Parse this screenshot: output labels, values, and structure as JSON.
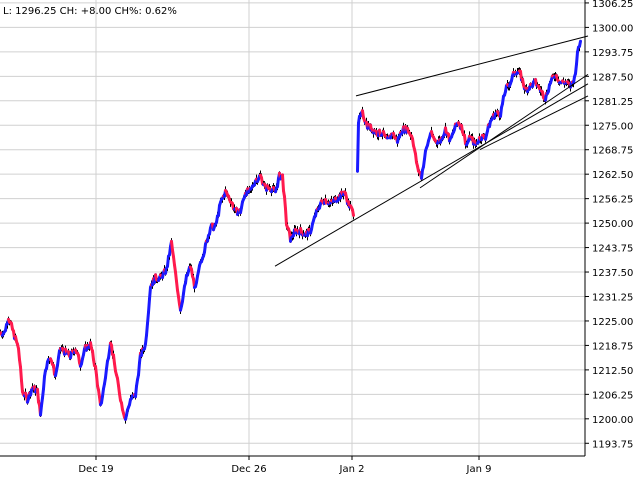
{
  "header": {
    "text": "L: 1296.25 CH: +8.00 CH%: 0.62%"
  },
  "colors": {
    "up": "#1a1aff",
    "down": "#ff1a4d",
    "wick": "#000000",
    "grid": "#d0d0d0",
    "trendline": "#000000"
  },
  "chart_data": {
    "type": "line",
    "title": "",
    "xlabel": "",
    "ylabel": "",
    "ylim": [
      1190.5,
      1307
    ],
    "grid": true,
    "y_axis_position": "right",
    "yticks": [
      "1306.25",
      "1300.00",
      "1293.75",
      "1287.50",
      "1281.25",
      "1275.00",
      "1268.75",
      "1262.50",
      "1256.25",
      "1250.00",
      "1243.75",
      "1237.50",
      "1231.25",
      "1225.00",
      "1218.75",
      "1212.50",
      "1206.25",
      "1200.00",
      "1193.75"
    ],
    "xticks": [
      "Dec 19",
      "Dec 26",
      "Jan 2",
      "Jan 9"
    ],
    "series": [
      {
        "style": "colored-bar-line",
        "anchors": [
          [
            0,
            1222
          ],
          [
            4,
            1222
          ],
          [
            8,
            1226
          ],
          [
            13,
            1222
          ],
          [
            18,
            1218
          ],
          [
            22,
            1207
          ],
          [
            27,
            1205
          ],
          [
            32,
            1208
          ],
          [
            37,
            1207
          ],
          [
            40,
            1201
          ],
          [
            45,
            1213
          ],
          [
            50,
            1216
          ],
          [
            55,
            1211
          ],
          [
            60,
            1218
          ],
          [
            65,
            1217
          ],
          [
            70,
            1216
          ],
          [
            75,
            1218
          ],
          [
            80,
            1214
          ],
          [
            85,
            1218
          ],
          [
            90,
            1219
          ],
          [
            95,
            1213
          ],
          [
            100,
            1203
          ],
          [
            104,
            1209
          ],
          [
            110,
            1220
          ],
          [
            116,
            1211
          ],
          [
            121,
            1204
          ],
          [
            125,
            1200
          ],
          [
            130,
            1205
          ],
          [
            135,
            1206
          ],
          [
            140,
            1216
          ],
          [
            145,
            1219
          ],
          [
            150,
            1234
          ],
          [
            155,
            1236
          ],
          [
            160,
            1236
          ],
          [
            166,
            1238
          ],
          [
            171,
            1245
          ],
          [
            175,
            1237
          ],
          [
            180,
            1228
          ],
          [
            186,
            1236
          ],
          [
            190,
            1239
          ],
          [
            195,
            1233
          ],
          [
            200,
            1240
          ],
          [
            205,
            1244
          ],
          [
            210,
            1249
          ],
          [
            215,
            1249
          ],
          [
            220,
            1255
          ],
          [
            225,
            1258
          ],
          [
            230,
            1256
          ],
          [
            235,
            1253
          ],
          [
            240,
            1253
          ],
          [
            245,
            1258
          ],
          [
            250,
            1258
          ],
          [
            255,
            1261
          ],
          [
            260,
            1262
          ],
          [
            265,
            1259
          ],
          [
            270,
            1259
          ],
          [
            275,
            1258
          ],
          [
            279,
            1262
          ],
          [
            282,
            1262
          ],
          [
            286,
            1250
          ],
          [
            290,
            1246
          ],
          [
            295,
            1248
          ],
          [
            300,
            1248
          ],
          [
            305,
            1247
          ],
          [
            310,
            1248
          ],
          [
            315,
            1252
          ],
          [
            320,
            1255
          ],
          [
            325,
            1256
          ],
          [
            330,
            1255
          ],
          [
            335,
            1256
          ],
          [
            340,
            1257
          ],
          [
            344,
            1258
          ],
          [
            348,
            1255
          ],
          [
            352,
            1253
          ],
          [
            356,
            1252
          ],
          [
            358,
            1276
          ],
          [
            362,
            1278
          ],
          [
            367,
            1275
          ],
          [
            372,
            1274
          ],
          [
            377,
            1273
          ],
          [
            382,
            1273
          ],
          [
            387,
            1271
          ],
          [
            392,
            1273
          ],
          [
            397,
            1271
          ],
          [
            402,
            1274
          ],
          [
            407,
            1274
          ],
          [
            412,
            1272
          ],
          [
            417,
            1264
          ],
          [
            421,
            1262
          ],
          [
            425,
            1268
          ],
          [
            430,
            1273
          ],
          [
            435,
            1271
          ],
          [
            440,
            1271
          ],
          [
            445,
            1274
          ],
          [
            450,
            1271
          ],
          [
            454,
            1274
          ],
          [
            458,
            1276
          ],
          [
            462,
            1274
          ],
          [
            466,
            1270
          ],
          [
            470,
            1272
          ],
          [
            475,
            1270
          ],
          [
            480,
            1272
          ],
          [
            485,
            1272
          ],
          [
            490,
            1276
          ],
          [
            495,
            1278
          ],
          [
            500,
            1278
          ],
          [
            505,
            1284
          ],
          [
            510,
            1286
          ],
          [
            515,
            1289
          ],
          [
            520,
            1288
          ],
          [
            525,
            1284
          ],
          [
            530,
            1285
          ],
          [
            535,
            1286
          ],
          [
            540,
            1284
          ],
          [
            545,
            1282
          ],
          [
            550,
            1286
          ],
          [
            555,
            1288
          ],
          [
            560,
            1286
          ],
          [
            565,
            1286
          ],
          [
            570,
            1285
          ],
          [
            574,
            1287
          ],
          [
            578,
            1295
          ],
          [
            580,
            1296.25
          ]
        ]
      }
    ],
    "trendlines": [
      {
        "from": [
          "Jan 2",
          1282.5
        ],
        "to": [
          "Jan 12",
          1297.8
        ]
      },
      {
        "from": [
          "Dec 28",
          1239.0
        ],
        "to": [
          "Jan 12",
          1285.6
        ]
      },
      {
        "from": [
          "Jan 4",
          1259.0
        ],
        "to": [
          "Jan 12",
          1288.0
        ]
      },
      {
        "from": [
          "Jan 8",
          1268.8
        ],
        "to": [
          "Jan 12",
          1282.5
        ]
      }
    ]
  }
}
